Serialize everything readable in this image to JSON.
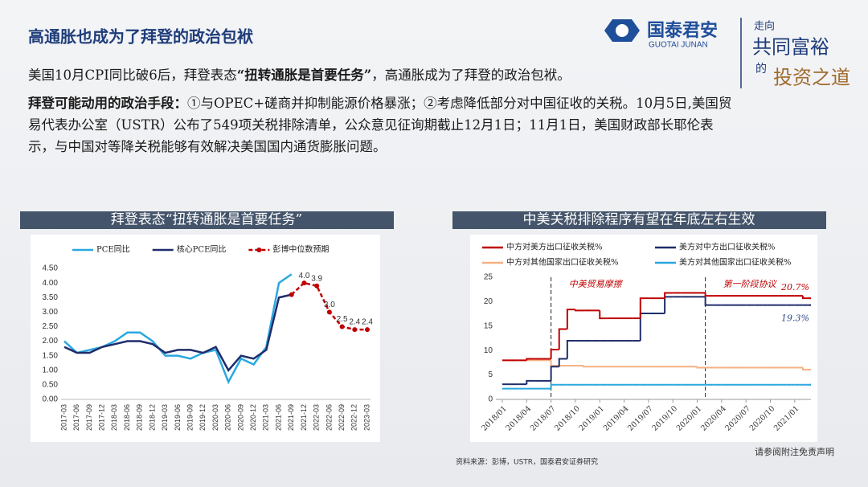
{
  "slide": {
    "title": "高通胀也成为了拜登的政治包袱",
    "logo": {
      "name": "国泰君安",
      "name_en": "GUOTAI JUNAN"
    },
    "slogan": [
      "走向",
      "共同富裕",
      "的",
      "投资之道"
    ],
    "paragraph1": [
      "美国10月CPI同比破6后，拜登表态",
      "“扭转通胀是首要任务”",
      "，高通胀成为了拜登的政治包袱。"
    ],
    "paragraph2": {
      "bold": "拜登可能动用的政治手段：",
      "text": "①与OPEC+磋商并抑制能源价格暴涨；②考虑降低部分对中国征收的关税。10月5日,美国贸易代表办公室（USTR）公布了549项关税排除清单，公众意见征询期截止12月1日；11月1日，美国财政部长耶伦表示，与中国对等降关税能够有效解决美国国内通货膨胀问题。"
    },
    "left_header": "拜登表态“扭转通胀是首要任务”",
    "right_header": "中美关税排除程序有望在年底左右生效",
    "source": "资料来源：彭博，USTR，国泰君安证券研究",
    "disclaimer": "请参阅附注免责声明"
  },
  "chart_data": [
    {
      "type": "line",
      "legend": "top",
      "categories": [
        "2017-03",
        "2017-06",
        "2017-09",
        "2017-12",
        "2018-03",
        "2018-06",
        "2018-09",
        "2018-12",
        "2019-03",
        "2019-06",
        "2019-09",
        "2019-12",
        "2020-03",
        "2020-06",
        "2020-09",
        "2020-12",
        "2021-03",
        "2021-06",
        "2021-09",
        "2021-12",
        "2022-03",
        "2022-06",
        "2022-09",
        "2022-12",
        "2023-03"
      ],
      "series": [
        {
          "name": "PCE同比",
          "color": "#29a8e0",
          "values": [
            2.0,
            1.6,
            1.7,
            1.8,
            2.0,
            2.3,
            2.3,
            2.0,
            1.5,
            1.5,
            1.4,
            1.6,
            1.7,
            0.6,
            1.4,
            1.2,
            1.8,
            4.0,
            4.3,
            null,
            null,
            null,
            null,
            null,
            null
          ]
        },
        {
          "name": "核心PCE同比",
          "color": "#1f2d6b",
          "values": [
            1.8,
            1.6,
            1.6,
            1.8,
            1.9,
            2.0,
            2.0,
            1.9,
            1.6,
            1.7,
            1.7,
            1.6,
            1.8,
            1.0,
            1.5,
            1.4,
            1.7,
            3.5,
            3.6,
            null,
            null,
            null,
            null,
            null,
            null
          ]
        },
        {
          "name": "彭博中位数预期",
          "color": "#c00000",
          "dashed": true,
          "markers": true,
          "values": [
            null,
            null,
            null,
            null,
            null,
            null,
            null,
            null,
            null,
            null,
            null,
            null,
            null,
            null,
            null,
            null,
            null,
            null,
            3.6,
            4.0,
            3.9,
            3.0,
            2.5,
            2.4,
            2.4
          ],
          "value_labels": [
            null,
            null,
            null,
            null,
            null,
            null,
            null,
            null,
            null,
            null,
            null,
            null,
            null,
            null,
            null,
            null,
            null,
            null,
            null,
            "4.0",
            "3.9",
            "3.0",
            "2.5",
            "2.4",
            "2.4"
          ]
        }
      ],
      "ylim": [
        0,
        4.5
      ],
      "yticks": [
        {
          "value": 0,
          "label": "0.00"
        },
        {
          "value": 0.5,
          "label": "0.50"
        },
        {
          "value": 1,
          "label": "1.00"
        },
        {
          "value": 1.5,
          "label": "1.50"
        },
        {
          "value": 2,
          "label": "2.00"
        },
        {
          "value": 2.5,
          "label": "2.50"
        },
        {
          "value": 3,
          "label": "3.00"
        },
        {
          "value": 3.5,
          "label": "3.50"
        },
        {
          "value": 4,
          "label": "4.00"
        },
        {
          "value": 4.5,
          "label": "4.50"
        }
      ]
    },
    {
      "type": "step",
      "legend": "top",
      "x": [
        "2018/01",
        "2018/02",
        "2018/03",
        "2018/04",
        "2018/05",
        "2018/06",
        "2018/07",
        "2018/08",
        "2018/09",
        "2018/10",
        "2018/11",
        "2018/12",
        "2019/01",
        "2019/02",
        "2019/03",
        "2019/04",
        "2019/05",
        "2019/06",
        "2019/07",
        "2019/08",
        "2019/09",
        "2019/10",
        "2019/11",
        "2019/12",
        "2020/01",
        "2020/02",
        "2020/03",
        "2020/04",
        "2020/05",
        "2020/06",
        "2020/07",
        "2020/08",
        "2020/09",
        "2020/10",
        "2020/11",
        "2020/12",
        "2021/01",
        "2021/02",
        "2021/03"
      ],
      "xticks": [
        "2018/01",
        "2018/04",
        "2018/07",
        "2018/10",
        "2019/01",
        "2019/04",
        "2019/07",
        "2019/10",
        "2020/01",
        "2020/04",
        "2020/07",
        "2020/10",
        "2021/01"
      ],
      "series": [
        {
          "name": "中方对美方出口征收关税%",
          "color": "#c00000",
          "values": [
            8.0,
            8.0,
            8.0,
            8.3,
            8.3,
            8.3,
            10.2,
            14.4,
            18.4,
            18.2,
            18.2,
            18.2,
            16.6,
            16.6,
            16.6,
            16.6,
            16.6,
            20.7,
            20.7,
            20.7,
            21.8,
            21.8,
            21.8,
            21.8,
            21.8,
            21.2,
            21.2,
            21.2,
            21.2,
            21.2,
            21.2,
            21.2,
            21.2,
            21.2,
            21.2,
            21.2,
            21.2,
            20.7,
            20.7
          ],
          "value_labels": [
            null,
            null,
            null,
            null,
            null,
            null,
            null,
            null,
            null,
            null,
            null,
            null,
            null,
            null,
            null,
            null,
            null,
            null,
            null,
            null,
            null,
            null,
            null,
            null,
            null,
            null,
            null,
            null,
            null,
            null,
            null,
            null,
            null,
            null,
            null,
            null,
            null,
            null,
            "20.7%"
          ]
        },
        {
          "name": "美方对中方出口征收关税%",
          "color": "#1f2d6b",
          "values": [
            3.1,
            3.1,
            3.1,
            3.8,
            3.8,
            3.8,
            6.7,
            8.3,
            12.0,
            12.0,
            12.0,
            12.0,
            12.0,
            12.0,
            12.0,
            12.0,
            12.0,
            17.6,
            17.6,
            17.6,
            21.0,
            21.0,
            21.0,
            21.0,
            21.0,
            19.3,
            19.3,
            19.3,
            19.3,
            19.3,
            19.3,
            19.3,
            19.3,
            19.3,
            19.3,
            19.3,
            19.3,
            19.3,
            19.3
          ],
          "value_labels": [
            null,
            null,
            null,
            null,
            null,
            null,
            null,
            null,
            null,
            null,
            null,
            null,
            null,
            null,
            null,
            null,
            null,
            null,
            null,
            null,
            null,
            null,
            null,
            null,
            null,
            null,
            null,
            null,
            null,
            null,
            null,
            null,
            null,
            null,
            null,
            null,
            null,
            null,
            "19.3%"
          ]
        },
        {
          "name": "中方对其他国家出口征收关税%",
          "color": "#f4b183",
          "values": [
            8.0,
            8.0,
            8.0,
            8.0,
            8.0,
            8.0,
            6.9,
            6.9,
            6.9,
            6.9,
            6.7,
            6.7,
            6.7,
            6.7,
            6.7,
            6.7,
            6.7,
            6.7,
            6.7,
            6.7,
            6.7,
            6.7,
            6.7,
            6.7,
            6.5,
            6.5,
            6.5,
            6.5,
            6.5,
            6.5,
            6.5,
            6.5,
            6.5,
            6.5,
            6.5,
            6.5,
            6.5,
            6.1,
            6.1
          ]
        },
        {
          "name": "美方对其他国家出口征收关税%",
          "color": "#29a8e0",
          "values": [
            2.2,
            2.2,
            2.2,
            2.2,
            2.2,
            2.2,
            3.0,
            3.0,
            3.0,
            3.0,
            3.0,
            3.0,
            3.0,
            3.0,
            3.0,
            3.0,
            3.0,
            3.0,
            3.0,
            3.0,
            3.0,
            3.0,
            3.0,
            3.0,
            3.0,
            3.0,
            3.0,
            3.0,
            3.0,
            3.0,
            3.0,
            3.0,
            3.0,
            3.0,
            3.0,
            3.0,
            3.0,
            3.0,
            3.0
          ]
        }
      ],
      "events": [
        {
          "x": "2018/07",
          "label": "中美贸易摩擦"
        },
        {
          "x": "2020/02",
          "label": "第一阶段协议"
        }
      ],
      "ylim": [
        0,
        25
      ],
      "yticks": [
        0,
        5,
        10,
        15,
        20,
        25
      ]
    }
  ]
}
